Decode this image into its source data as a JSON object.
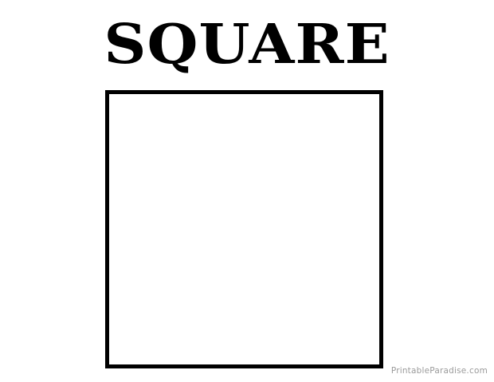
{
  "title": "SQUARE",
  "watermark": "PrintableParadise.com",
  "colors": {
    "background": "#ffffff",
    "ink": "#000000",
    "watermark": "#9a9a9a"
  }
}
